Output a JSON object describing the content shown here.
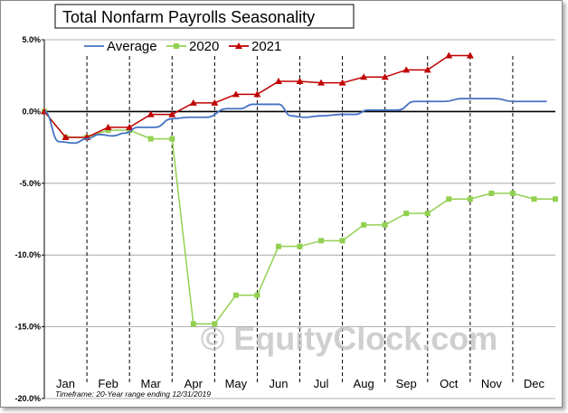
{
  "chart_data": {
    "type": "line",
    "title": "Total Nonfarm Payrolls Seasonality",
    "xlabel": "",
    "ylabel": "",
    "ylim": [
      -20,
      5
    ],
    "y_ticks": [
      "5.0%",
      "0.0%",
      "-5.0%",
      "-10.0%",
      "-15.0%",
      "-20.0%"
    ],
    "y_tick_values": [
      5,
      0,
      -5,
      -10,
      -15,
      -20
    ],
    "categories": [
      "Jan",
      "Feb",
      "Mar",
      "Apr",
      "May",
      "Jun",
      "Jul",
      "Aug",
      "Sep",
      "Oct",
      "Nov",
      "Dec"
    ],
    "legend_placement": "top-left",
    "grid": "vertical dashed month separators, horizontal lines at major ticks",
    "series": [
      {
        "name": "Average",
        "color": "#4472C4",
        "marker": "none",
        "x": [
          0,
          0.35,
          0.7,
          1.0,
          1.3,
          1.6,
          1.9,
          2.2,
          2.6,
          3.0,
          3.4,
          3.8,
          4.3,
          4.6,
          4.9,
          5.2,
          5.5,
          5.8,
          6.1,
          6.5,
          7.0,
          7.3,
          7.6,
          7.9,
          8.3,
          8.7,
          9.0,
          9.4,
          9.8,
          10.2,
          10.6,
          11.0,
          11.4,
          11.8
        ],
        "values": [
          0,
          -2.1,
          -2.2,
          -1.9,
          -1.6,
          -1.7,
          -1.5,
          -1.1,
          -1.1,
          -0.5,
          -0.4,
          -0.4,
          0.2,
          0.2,
          0.5,
          0.5,
          0.5,
          -0.3,
          -0.4,
          -0.3,
          -0.2,
          -0.2,
          0.1,
          0.1,
          0.1,
          0.7,
          0.7,
          0.7,
          0.9,
          0.9,
          0.9,
          0.7,
          0.7,
          0.7
        ]
      },
      {
        "name": "2020",
        "color": "#92D050",
        "marker": "square",
        "x": [
          0,
          0.5,
          1.0,
          1.5,
          2.0,
          2.5,
          3.0,
          3.5,
          4.0,
          4.5,
          5.0,
          5.5,
          6.0,
          6.5,
          7.0,
          7.5,
          8.0,
          8.5,
          9.0,
          9.5,
          10.0,
          10.5,
          11.0,
          11.5,
          12.0
        ],
        "values": [
          0,
          -1.8,
          -1.8,
          -1.3,
          -1.3,
          -1.9,
          -1.9,
          -14.8,
          -14.8,
          -12.8,
          -12.8,
          -9.4,
          -9.4,
          -9.0,
          -9.0,
          -7.9,
          -7.9,
          -7.1,
          -7.1,
          -6.1,
          -6.1,
          -5.7,
          -5.7,
          -6.1,
          -6.1
        ]
      },
      {
        "name": "2021",
        "color": "#C00000",
        "marker": "triangle",
        "x": [
          0,
          0.5,
          1.0,
          1.5,
          2.0,
          2.5,
          3.0,
          3.5,
          4.0,
          4.5,
          5.0,
          5.5,
          6.0,
          6.5,
          7.0,
          7.5,
          8.0,
          8.5,
          9.0,
          9.5,
          10.0
        ],
        "values": [
          0,
          -1.8,
          -1.8,
          -1.1,
          -1.1,
          -0.2,
          -0.2,
          0.6,
          0.6,
          1.2,
          1.2,
          2.1,
          2.1,
          2.0,
          2.0,
          2.4,
          2.4,
          2.9,
          2.9,
          3.9,
          3.9
        ]
      }
    ],
    "watermark": "© EquityClock.com",
    "footnote": "Timeframe: 20-Year range ending 12/31/2019"
  }
}
